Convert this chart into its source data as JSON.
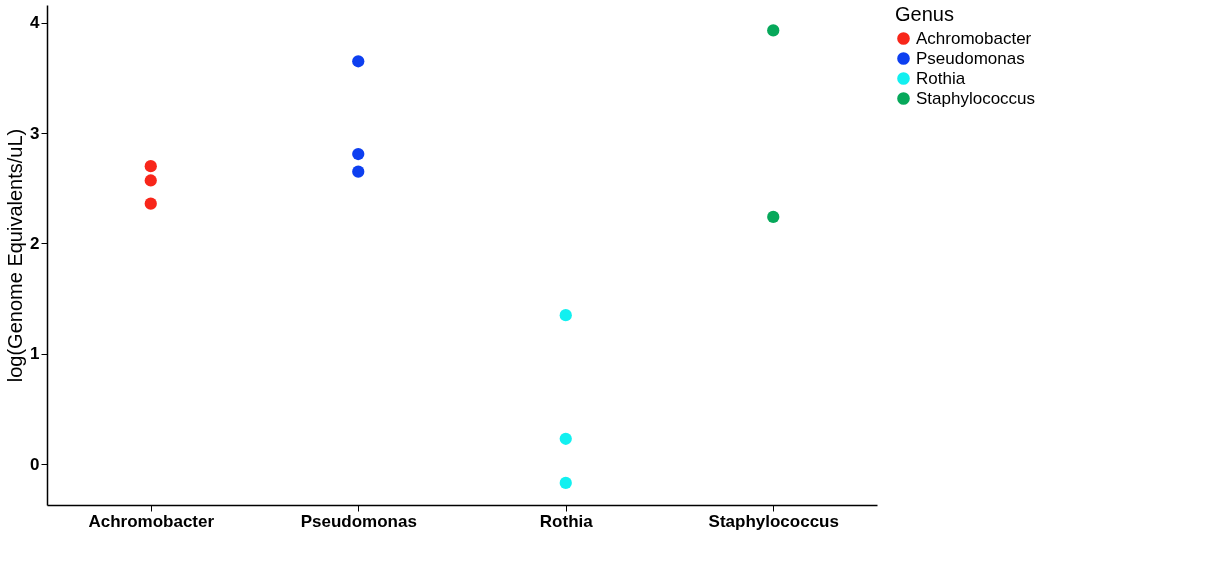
{
  "chart_data": {
    "type": "scatter",
    "ylabel": "log(Genome Equivalents/uL)",
    "legend_title": "Genus",
    "categories": [
      "Achromobacter",
      "Pseudomonas",
      "Rothia",
      "Staphylococcus"
    ],
    "series": [
      {
        "name": "Achromobacter",
        "color": "#f8261a",
        "x": [
          "Achromobacter",
          "Achromobacter",
          "Achromobacter"
        ],
        "values": [
          2.7,
          2.57,
          2.36
        ]
      },
      {
        "name": "Pseudomonas",
        "color": "#0d3ff0",
        "x": [
          "Pseudomonas",
          "Pseudomonas",
          "Pseudomonas"
        ],
        "values": [
          3.65,
          2.81,
          2.65
        ]
      },
      {
        "name": "Rothia",
        "color": "#12f0f0",
        "x": [
          "Rothia",
          "Rothia",
          "Rothia"
        ],
        "values": [
          1.35,
          0.23,
          -0.17
        ]
      },
      {
        "name": "Staphylococcus",
        "color": "#06a85a",
        "x": [
          "Staphylococcus",
          "Staphylococcus"
        ],
        "values": [
          3.93,
          2.24
        ]
      }
    ],
    "ylim": [
      -0.37,
      4.16
    ],
    "yticks": [
      0,
      1,
      2,
      3,
      4
    ],
    "grid": false,
    "legend": "right",
    "marker": "circle"
  }
}
